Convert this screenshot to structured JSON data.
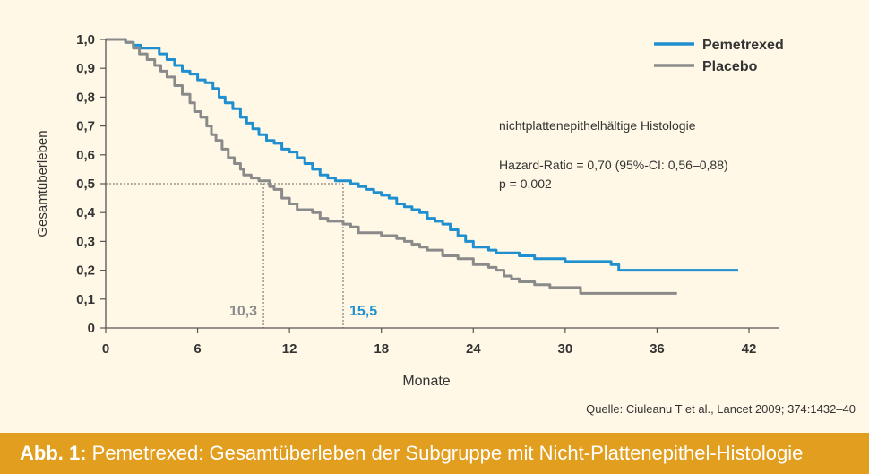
{
  "chart_data": {
    "type": "line",
    "xlabel": "Monate",
    "ylabel": "Gesamtüberleben",
    "xlim": [
      0,
      42
    ],
    "ylim": [
      0,
      1.0
    ],
    "x_ticks": [
      0,
      6,
      12,
      18,
      24,
      30,
      36,
      42
    ],
    "x_tick_labels": [
      "0",
      "6",
      "12",
      "18",
      "24",
      "30",
      "36",
      "42"
    ],
    "y_ticks": [
      0,
      0.1,
      0.2,
      0.3,
      0.4,
      0.5,
      0.6,
      0.7,
      0.8,
      0.9,
      1.0
    ],
    "y_tick_labels": [
      "0",
      "0,1",
      "0,2",
      "0,3",
      "0,4",
      "0,5",
      "0,6",
      "0,7",
      "0,8",
      "0,9",
      "1,0"
    ],
    "grid": false,
    "legend_position": "top-right",
    "series": [
      {
        "name": "Pemetrexed",
        "color": "#1f8fcf",
        "x": [
          0,
          0.9,
          1.3,
          1.8,
          2.3,
          3.0,
          3.5,
          4.0,
          4.5,
          5.0,
          5.5,
          6.0,
          6.5,
          7.0,
          7.4,
          7.8,
          8.3,
          8.8,
          9.2,
          9.6,
          10.0,
          10.5,
          11.0,
          11.5,
          12.0,
          12.5,
          13.0,
          13.5,
          14.0,
          14.5,
          15.0,
          15.5,
          16.0,
          16.5,
          17.0,
          17.5,
          18.0,
          18.5,
          19.0,
          19.5,
          20.0,
          20.5,
          21.0,
          21.5,
          22.0,
          22.5,
          23.0,
          23.5,
          24.0,
          24.5,
          25.0,
          25.5,
          26.0,
          27.0,
          28.0,
          29.0,
          30.0,
          31.0,
          32.0,
          33.0,
          33.5,
          35.0,
          37.0,
          39.0,
          41.0,
          41.3
        ],
        "y": [
          1.0,
          1.0,
          0.99,
          0.98,
          0.97,
          0.97,
          0.95,
          0.93,
          0.91,
          0.89,
          0.88,
          0.86,
          0.85,
          0.83,
          0.8,
          0.78,
          0.76,
          0.73,
          0.71,
          0.69,
          0.67,
          0.65,
          0.64,
          0.62,
          0.61,
          0.59,
          0.57,
          0.55,
          0.53,
          0.52,
          0.51,
          0.51,
          0.5,
          0.49,
          0.48,
          0.47,
          0.46,
          0.45,
          0.43,
          0.42,
          0.41,
          0.4,
          0.38,
          0.37,
          0.36,
          0.34,
          0.32,
          0.3,
          0.28,
          0.28,
          0.27,
          0.26,
          0.26,
          0.25,
          0.24,
          0.24,
          0.23,
          0.23,
          0.23,
          0.22,
          0.2,
          0.2,
          0.2,
          0.2,
          0.2,
          0.2
        ]
      },
      {
        "name": "Placebo",
        "color": "#8a8a8a",
        "x": [
          0,
          0.9,
          1.3,
          1.8,
          2.2,
          2.7,
          3.2,
          3.6,
          4.0,
          4.5,
          5.0,
          5.5,
          5.8,
          6.2,
          6.6,
          6.9,
          7.2,
          7.6,
          8.0,
          8.4,
          8.8,
          9.0,
          9.5,
          10.0,
          10.3,
          10.7,
          11.0,
          11.5,
          12.0,
          12.5,
          13.0,
          13.5,
          14.0,
          14.5,
          15.0,
          15.5,
          16.0,
          16.5,
          17.0,
          17.5,
          18.0,
          18.5,
          19.0,
          19.5,
          20.0,
          20.5,
          21.0,
          22.0,
          23.0,
          24.0,
          25.0,
          25.5,
          26.0,
          26.5,
          27.0,
          28.0,
          29.0,
          30.0,
          30.5,
          31.0,
          32.0,
          34.0,
          36.0,
          37.3
        ],
        "y": [
          1.0,
          1.0,
          0.99,
          0.97,
          0.95,
          0.93,
          0.91,
          0.89,
          0.87,
          0.84,
          0.81,
          0.78,
          0.75,
          0.73,
          0.7,
          0.67,
          0.65,
          0.62,
          0.59,
          0.57,
          0.55,
          0.53,
          0.52,
          0.51,
          0.51,
          0.49,
          0.48,
          0.45,
          0.43,
          0.41,
          0.41,
          0.4,
          0.38,
          0.37,
          0.37,
          0.36,
          0.35,
          0.33,
          0.33,
          0.33,
          0.32,
          0.32,
          0.31,
          0.3,
          0.29,
          0.28,
          0.27,
          0.25,
          0.24,
          0.22,
          0.21,
          0.2,
          0.18,
          0.17,
          0.16,
          0.15,
          0.14,
          0.14,
          0.14,
          0.12,
          0.12,
          0.12,
          0.12,
          0.12
        ]
      }
    ],
    "median_lines": [
      {
        "series": "Placebo",
        "x": 10.3,
        "y": 0.5,
        "label": "10,3",
        "color": "#8a8a8a"
      },
      {
        "series": "Pemetrexed",
        "x": 15.5,
        "y": 0.5,
        "label": "15,5",
        "color": "#1f8fcf"
      }
    ],
    "annotations": {
      "histology": "nichtplattenepithelhältige Histologie",
      "hazard_ratio": "Hazard-Ratio = 0,70 (95%-CI: 0,56–0,88)",
      "p_value": "p = 0,002"
    },
    "source": "Quelle: Ciuleanu T et al., Lancet 2009; 374:1432–40"
  },
  "caption": {
    "label": "Abb. 1:",
    "text": " Pemetrexed: Gesamtüberleben der Subgruppe mit Nicht-Plattenepithel-Histologie"
  }
}
